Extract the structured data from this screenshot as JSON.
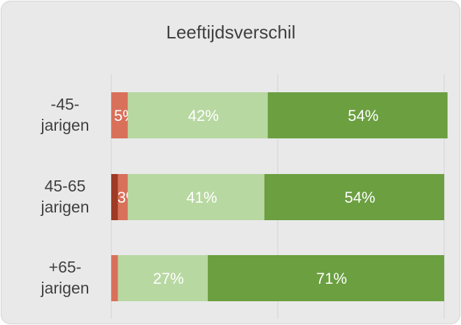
{
  "chart_data": {
    "type": "stacked_barh",
    "title": "Leeftijdsverschil",
    "categories": [
      "-45-\njarigen",
      "45-65\njarigen",
      "+65-\njarigen"
    ],
    "series": [
      {
        "color": "#9e3a26",
        "values": [
          0,
          2,
          0
        ]
      },
      {
        "color": "#d9705a",
        "values": [
          5,
          3,
          2
        ],
        "value_labels": [
          "5%",
          "3%",
          null
        ]
      },
      {
        "color": "#b8d8a2",
        "values": [
          42,
          41,
          27
        ],
        "value_labels": [
          "42%",
          "41%",
          "27%"
        ]
      },
      {
        "color": "#6b9f40",
        "values": [
          54,
          54,
          71
        ],
        "value_labels": [
          "54%",
          "54%",
          "71%"
        ]
      }
    ],
    "xlim": [
      0,
      100
    ],
    "xticks": [
      0,
      50,
      100
    ],
    "grid": true
  }
}
